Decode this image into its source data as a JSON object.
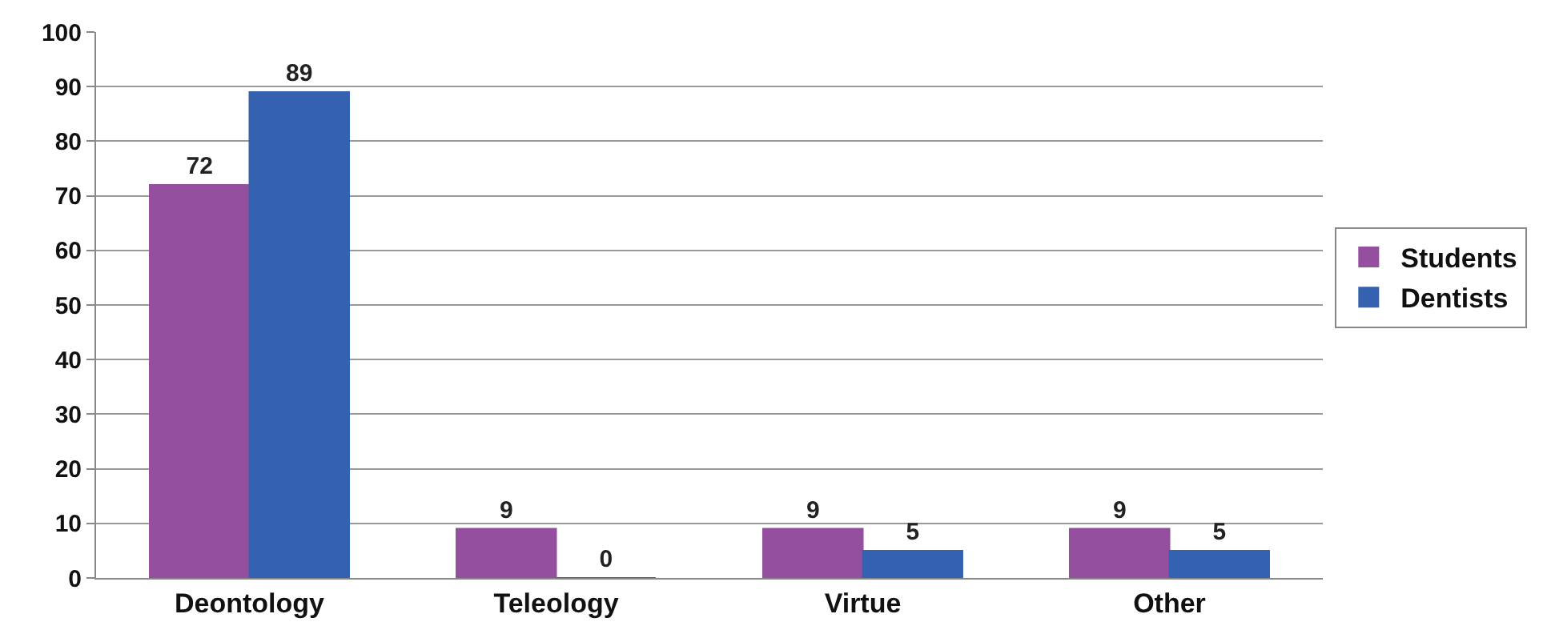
{
  "chart_data": {
    "type": "bar",
    "categories": [
      "Deontology",
      "Teleology",
      "Virtue",
      "Other"
    ],
    "series": [
      {
        "name": "Students",
        "color": "#944f9e",
        "values": [
          72,
          9,
          9,
          9
        ]
      },
      {
        "name": "Dentists",
        "color": "#3462b0",
        "values": [
          89,
          0,
          5,
          5
        ]
      }
    ],
    "ylim": [
      0,
      100
    ],
    "yticks": [
      0,
      10,
      20,
      30,
      40,
      50,
      60,
      70,
      80,
      90,
      100
    ],
    "grid": "y",
    "legend": "right",
    "data_labels": true
  }
}
